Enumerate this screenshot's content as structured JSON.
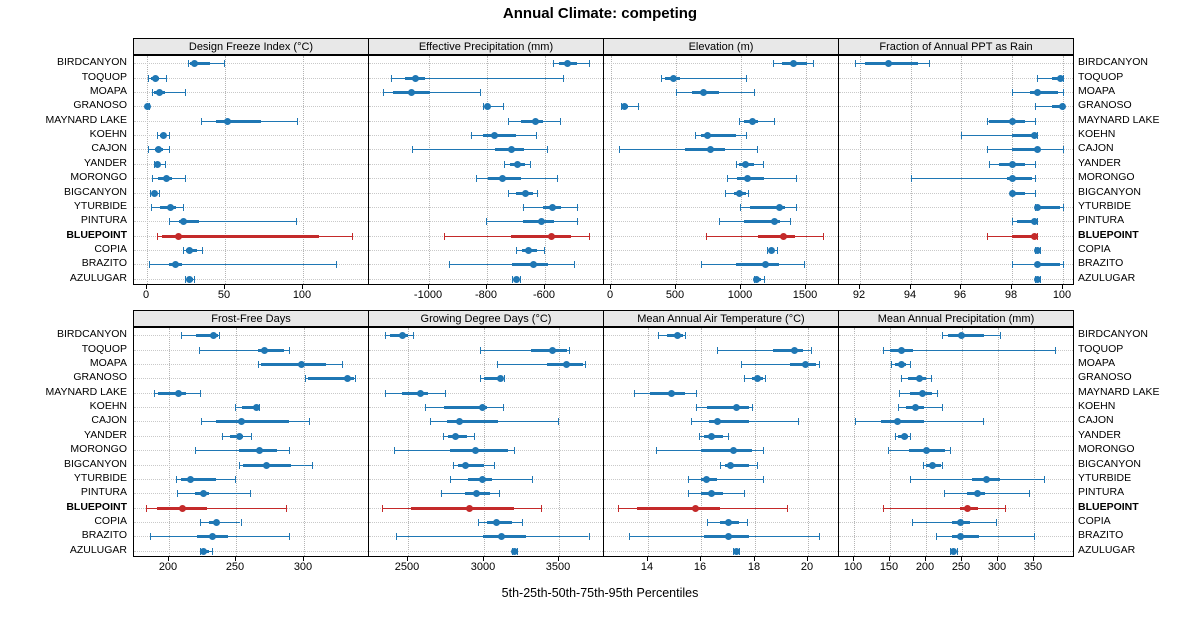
{
  "title": "Annual Climate: competing",
  "caption": "5th-25th-50th-75th-95th Percentiles",
  "colors": {
    "series": "#1f77b4",
    "highlight": "#c42a2a",
    "strip_bg": "#e8e8e8",
    "panel_border": "#000000",
    "grid": "#bdbdbd"
  },
  "chart_data": {
    "type": "dotplot-percentiles",
    "percentile_labels": [
      "5th",
      "25th",
      "50th",
      "75th",
      "95th"
    ],
    "highlight_site": "BLUEPOINT",
    "legend_position": "none",
    "grid": "dotted",
    "sites": [
      "BIRDCANYON",
      "TOQUOP",
      "MOAPA",
      "GRANOSO",
      "MAYNARD LAKE",
      "KOEHN",
      "CAJON",
      "YANDER",
      "MORONGO",
      "BIGCANYON",
      "YTURBIDE",
      "PINTURA",
      "BLUEPOINT",
      "COPIA",
      "BRAZITO",
      "AZULUGAR"
    ],
    "panels": [
      {
        "title": "Design Freeze Index (°C)",
        "xlim": [
          -8,
          142
        ],
        "ticks": [
          0,
          50,
          100
        ],
        "values": [
          [
            26,
            27,
            30,
            40,
            49
          ],
          [
            0.5,
            2.5,
            5,
            7.5,
            12
          ],
          [
            3,
            4,
            7.5,
            11,
            24
          ],
          [
            0,
            0,
            0.3,
            0.6,
            1
          ],
          [
            34,
            44,
            51,
            73,
            96
          ],
          [
            6,
            8,
            10,
            12,
            14
          ],
          [
            0.5,
            5,
            7,
            10,
            14
          ],
          [
            4,
            5,
            6.5,
            8,
            11
          ],
          [
            3,
            7,
            12,
            16,
            24
          ],
          [
            1.7,
            3,
            4.5,
            6,
            7.5
          ],
          [
            2,
            8,
            15,
            18,
            23
          ],
          [
            14,
            20,
            23,
            33,
            95
          ],
          [
            6,
            9,
            20,
            110,
            131
          ],
          [
            23,
            25,
            27,
            32,
            35
          ],
          [
            1,
            14,
            18,
            22,
            121
          ],
          [
            24,
            26,
            27,
            29,
            30
          ]
        ]
      },
      {
        "title": "Effective Precipitation (mm)",
        "xlim": [
          -1205,
          -395
        ],
        "ticks": [
          -1000,
          -800,
          -600
        ],
        "values": [
          [
            -573,
            -552,
            -521,
            -487,
            -446
          ],
          [
            -1133,
            -1084,
            -1047,
            -1015,
            -536
          ],
          [
            -1161,
            -1126,
            -1061,
            -998,
            -825
          ],
          [
            -814,
            -806,
            -800,
            -791,
            -745
          ],
          [
            -728,
            -681,
            -633,
            -607,
            -549
          ],
          [
            -854,
            -814,
            -773,
            -699,
            -630
          ],
          [
            -1061,
            -773,
            -716,
            -673,
            -593
          ],
          [
            -742,
            -722,
            -693,
            -670,
            -650
          ],
          [
            -839,
            -797,
            -745,
            -682,
            -559
          ],
          [
            -728,
            -699,
            -667,
            -641,
            -628
          ],
          [
            -674,
            -607,
            -575,
            -544,
            -490
          ],
          [
            -805,
            -676,
            -613,
            -567,
            -490
          ],
          [
            -949,
            -716,
            -578,
            -509,
            -446
          ],
          [
            -701,
            -678,
            -655,
            -628,
            -601
          ],
          [
            -931,
            -713,
            -639,
            -590,
            -498
          ],
          [
            -713,
            -706,
            -699,
            -692,
            -685
          ]
        ]
      },
      {
        "title": "Elevation (m)",
        "xlim": [
          -50,
          1755
        ],
        "ticks": [
          0,
          500,
          1000,
          1500
        ],
        "values": [
          [
            1244,
            1312,
            1401,
            1508,
            1553
          ],
          [
            381,
            416,
            475,
            525,
            1041
          ],
          [
            500,
            619,
            711,
            830,
            1102
          ],
          [
            76,
            81,
            102,
            127,
            203
          ],
          [
            982,
            1020,
            1084,
            1134,
            1254
          ],
          [
            645,
            690,
            741,
            957,
            1041
          ],
          [
            56,
            568,
            761,
            873,
            1122
          ],
          [
            964,
            982,
            1033,
            1102,
            1168
          ],
          [
            888,
            970,
            1051,
            1178,
            1421
          ],
          [
            873,
            944,
            990,
            1041,
            1051
          ],
          [
            990,
            1071,
            1294,
            1338,
            1421
          ],
          [
            830,
            1020,
            1254,
            1300,
            1376
          ],
          [
            728,
            1134,
            1325,
            1414,
            1634
          ],
          [
            1198,
            1215,
            1236,
            1255,
            1274
          ],
          [
            690,
            957,
            1185,
            1294,
            1482
          ],
          [
            1096,
            1105,
            1117,
            1150,
            1178
          ]
        ]
      },
      {
        "title": "Fraction of Annual PPT as Rain",
        "xlim": [
          91.2,
          100.45
        ],
        "ticks": [
          92,
          94,
          96,
          98,
          100
        ],
        "values": [
          [
            91.8,
            92.2,
            93.1,
            94.3,
            94.7
          ],
          [
            99.0,
            99.6,
            99.9,
            100.0,
            100.0
          ],
          [
            98.0,
            98.7,
            99.0,
            99.8,
            100.0
          ],
          [
            98.9,
            99.6,
            100.0,
            100.0,
            100.0
          ],
          [
            97.0,
            97.1,
            98.0,
            98.5,
            98.9
          ],
          [
            96.0,
            98.0,
            98.9,
            99.0,
            99.0
          ],
          [
            97.0,
            98.0,
            99.0,
            99.0,
            100.0
          ],
          [
            97.1,
            97.5,
            98.0,
            98.5,
            98.9
          ],
          [
            94.0,
            97.8,
            98.0,
            98.8,
            98.9
          ],
          [
            98.0,
            98.0,
            98.0,
            98.5,
            98.9
          ],
          [
            98.9,
            99.0,
            99.0,
            99.9,
            100.0
          ],
          [
            98.0,
            98.2,
            98.9,
            99.0,
            99.0
          ],
          [
            97.0,
            98.0,
            98.9,
            99.0,
            99.0
          ],
          [
            98.9,
            99.0,
            99.0,
            99.0,
            99.1
          ],
          [
            98.0,
            98.9,
            99.0,
            99.9,
            100.0
          ],
          [
            98.9,
            99.0,
            99.0,
            99.0,
            99.1
          ]
        ]
      },
      {
        "title": "Frost-Free Days",
        "xlim": [
          175,
          348
        ],
        "ticks": [
          200,
          250,
          300
        ],
        "values": [
          [
            209,
            220,
            233,
            236,
            237
          ],
          [
            222,
            266,
            271,
            285,
            289
          ],
          [
            266,
            268,
            298,
            316,
            328
          ],
          [
            301,
            303,
            332,
            337,
            338
          ],
          [
            189,
            192,
            207,
            213,
            223
          ],
          [
            249,
            254,
            265,
            266,
            267
          ],
          [
            224,
            235,
            254,
            289,
            304
          ],
          [
            239,
            245,
            252,
            255,
            261
          ],
          [
            219,
            252,
            267,
            280,
            289
          ],
          [
            252,
            255,
            272,
            290,
            306
          ],
          [
            205,
            209,
            216,
            235,
            249
          ],
          [
            206,
            219,
            226,
            230,
            260
          ],
          [
            183,
            191,
            210,
            228,
            287
          ],
          [
            223,
            230,
            235,
            237,
            253
          ],
          [
            186,
            221,
            232,
            244,
            289
          ],
          [
            223,
            224,
            226,
            230,
            232
          ]
        ]
      },
      {
        "title": "Growing Degree Days (°C)",
        "xlim": [
          2245,
          3800
        ],
        "ticks": [
          2500,
          3000,
          3500
        ],
        "values": [
          [
            2348,
            2380,
            2463,
            2500,
            2533
          ],
          [
            2978,
            3315,
            3457,
            3554,
            3565
          ],
          [
            3087,
            3424,
            3554,
            3663,
            3674
          ],
          [
            2978,
            3000,
            3109,
            3130,
            3137
          ],
          [
            2348,
            2457,
            2580,
            2630,
            2746
          ],
          [
            2609,
            2739,
            2993,
            3022,
            3130
          ],
          [
            2646,
            2754,
            2841,
            3098,
            3493
          ],
          [
            2733,
            2761,
            2811,
            2891,
            2935
          ],
          [
            2405,
            2779,
            2949,
            3160,
            3204
          ],
          [
            2795,
            2830,
            2878,
            3000,
            3072
          ],
          [
            2779,
            2896,
            2993,
            3059,
            3322
          ],
          [
            2720,
            2874,
            2955,
            3043,
            3103
          ],
          [
            2324,
            2515,
            2905,
            3204,
            3380
          ],
          [
            2962,
            3021,
            3087,
            3191,
            3257
          ],
          [
            2421,
            2993,
            3116,
            3279,
            3697
          ],
          [
            3190,
            3200,
            3208,
            3215,
            3222
          ]
        ]
      },
      {
        "title": "Mean Annual Air Temperature (°C)",
        "xlim": [
          12.4,
          21.15
        ],
        "ticks": [
          14,
          16,
          18,
          20
        ],
        "values": [
          [
            14.4,
            14.7,
            15.1,
            15.3,
            15.4
          ],
          [
            16.6,
            18.7,
            19.5,
            19.8,
            20.1
          ],
          [
            17.5,
            19.3,
            19.9,
            20.3,
            20.4
          ],
          [
            17.6,
            17.9,
            18.1,
            18.3,
            18.4
          ],
          [
            13.5,
            14.1,
            14.9,
            15.4,
            15.8
          ],
          [
            15.8,
            16.2,
            17.3,
            17.8,
            17.9
          ],
          [
            15.6,
            16.3,
            16.6,
            17.8,
            19.6
          ],
          [
            15.9,
            16.1,
            16.4,
            16.8,
            17.0
          ],
          [
            14.3,
            16.0,
            17.2,
            17.9,
            18.3
          ],
          [
            16.7,
            16.9,
            17.1,
            17.8,
            18.1
          ],
          [
            15.5,
            16.0,
            16.2,
            16.6,
            18.3
          ],
          [
            15.5,
            16.0,
            16.4,
            16.8,
            17.6
          ],
          [
            12.9,
            13.6,
            15.8,
            16.7,
            19.2
          ],
          [
            16.2,
            16.7,
            17.0,
            17.4,
            17.7
          ],
          [
            13.3,
            16.1,
            17.0,
            17.8,
            20.4
          ],
          [
            17.2,
            17.25,
            17.3,
            17.35,
            17.4
          ]
        ]
      },
      {
        "title": "Mean Annual Precipitation (mm)",
        "xlim": [
          80,
          405
        ],
        "ticks": [
          100,
          150,
          200,
          250,
          300,
          350
        ],
        "values": [
          [
            222,
            230,
            249,
            280,
            302
          ],
          [
            140,
            149,
            165,
            182,
            379
          ],
          [
            151,
            156,
            165,
            172,
            177
          ],
          [
            165,
            175,
            190,
            200,
            206
          ],
          [
            162,
            177,
            194,
            208,
            215
          ],
          [
            160,
            172,
            185,
            197,
            221
          ],
          [
            101,
            137,
            160,
            197,
            278
          ],
          [
            156,
            160,
            169,
            175,
            177
          ],
          [
            146,
            176,
            200,
            226,
            233
          ],
          [
            195,
            200,
            208,
            220,
            222
          ],
          [
            177,
            263,
            284,
            302,
            364
          ],
          [
            224,
            256,
            271,
            282,
            342
          ],
          [
            140,
            247,
            257,
            271,
            309
          ],
          [
            180,
            235,
            247,
            260,
            296
          ],
          [
            213,
            235,
            247,
            273,
            349
          ],
          [
            233,
            236,
            238,
            240,
            242
          ]
        ]
      }
    ]
  }
}
